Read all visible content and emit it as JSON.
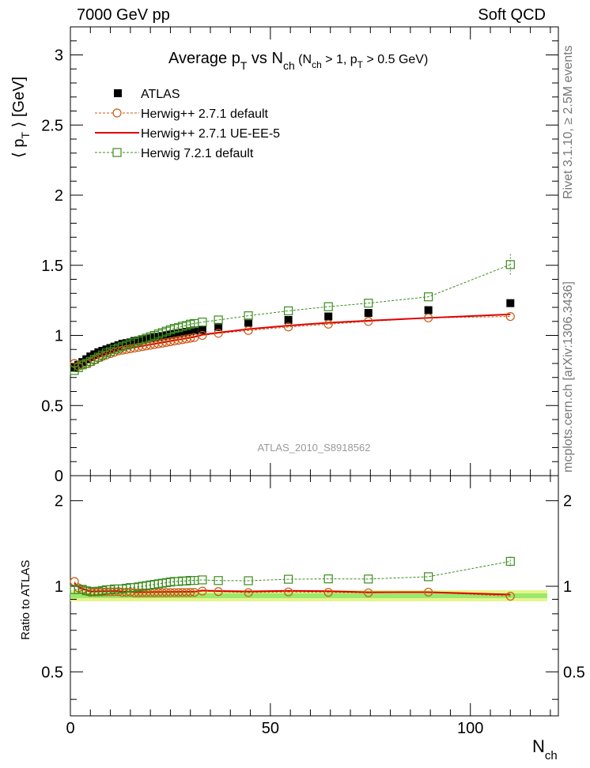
{
  "header": {
    "energy_label": "7000 GeV pp",
    "process_label": "Soft QCD",
    "side_rivet": "Rivet 3.1.10, ≥ 2.5M events",
    "side_mcplots": "mcplots.cern.ch [arXiv:1306.3436]"
  },
  "main_plot": {
    "title_main": "Average p",
    "title_sub_T": "T",
    "title_vs": " vs N",
    "title_sub_ch": "ch",
    "title_cond_1": " (N",
    "title_cond_2": " > 1, p",
    "title_cond_3": " > 0.5 GeV)",
    "ylabel_pre": "⟨ p",
    "ylabel_sub": "T",
    "ylabel_post": " ⟩ [GeV]",
    "analysis_id": "ATLAS_2010_S8918562",
    "yticks": [
      "0",
      "0.5",
      "1",
      "1.5",
      "2",
      "2.5",
      "3"
    ]
  },
  "ratio_plot": {
    "ylabel": "Ratio to ATLAS",
    "yticks": [
      "0.5",
      "1",
      "2"
    ],
    "xticks": [
      "0",
      "50",
      "100"
    ],
    "xlabel": "N",
    "xlabel_sub": "ch"
  },
  "legend": [
    {
      "label": "ATLAS",
      "color": "#000000",
      "marker": "filled-square"
    },
    {
      "label": "Herwig++ 2.7.1 default",
      "color": "#c85a14",
      "marker": "open-circle-dashed"
    },
    {
      "label": "Herwig++ 2.7.1 UE-EE-5",
      "color": "#e00000",
      "marker": "solid-line"
    },
    {
      "label": "Herwig 7.2.1 default",
      "color": "#3c8c1e",
      "marker": "open-square-dashed"
    }
  ],
  "chart_data": {
    "type": "scatter",
    "title": "Average pT vs Nch (Nch > 1, pT > 0.5 GeV)",
    "xlabel": "Nch",
    "ylabel": "⟨ pT ⟩ [GeV]",
    "xlim": [
      0,
      122
    ],
    "ylim": [
      0,
      3.2
    ],
    "ratio_ylim": [
      0.35,
      2.45
    ],
    "ratio_ylabel": "Ratio to ATLAS",
    "legend_position": "top-left",
    "series": [
      {
        "name": "ATLAS",
        "x": [
          1,
          2,
          3,
          4,
          5,
          6,
          7,
          8,
          9,
          10,
          11,
          12,
          13,
          14,
          15,
          16,
          17,
          18,
          19,
          20,
          21,
          22,
          23,
          24,
          25,
          26,
          27,
          28,
          29,
          30,
          31,
          33,
          37,
          44.5,
          54.5,
          64.5,
          74.5,
          89.5,
          110
        ],
        "y": [
          0.77,
          0.79,
          0.81,
          0.83,
          0.85,
          0.865,
          0.88,
          0.89,
          0.9,
          0.91,
          0.92,
          0.93,
          0.94,
          0.945,
          0.95,
          0.96,
          0.965,
          0.97,
          0.975,
          0.98,
          0.985,
          0.99,
          0.995,
          1.0,
          1.005,
          1.01,
          1.015,
          1.02,
          1.025,
          1.03,
          1.035,
          1.04,
          1.06,
          1.09,
          1.11,
          1.135,
          1.16,
          1.18,
          1.23
        ]
      },
      {
        "name": "Herwig++ 2.7.1 default",
        "x": [
          1,
          2,
          3,
          4,
          5,
          6,
          7,
          8,
          9,
          10,
          11,
          12,
          13,
          14,
          15,
          16,
          17,
          18,
          19,
          20,
          21,
          22,
          23,
          24,
          25,
          26,
          27,
          28,
          29,
          30,
          31,
          33,
          37,
          44.5,
          54.5,
          64.5,
          74.5,
          89.5,
          110
        ],
        "y": [
          0.8,
          0.78,
          0.79,
          0.8,
          0.81,
          0.825,
          0.84,
          0.85,
          0.86,
          0.87,
          0.88,
          0.89,
          0.895,
          0.9,
          0.905,
          0.91,
          0.915,
          0.92,
          0.925,
          0.93,
          0.935,
          0.94,
          0.945,
          0.95,
          0.955,
          0.96,
          0.965,
          0.97,
          0.975,
          0.98,
          0.985,
          1.0,
          1.015,
          1.035,
          1.06,
          1.08,
          1.1,
          1.125,
          1.135
        ]
      },
      {
        "name": "Herwig++ 2.7.1 UE-EE-5",
        "x": [
          1,
          2,
          3,
          4,
          5,
          6,
          7,
          8,
          9,
          10,
          11,
          12,
          13,
          14,
          15,
          16,
          17,
          18,
          19,
          20,
          21,
          22,
          23,
          24,
          25,
          26,
          27,
          28,
          29,
          30,
          31,
          33,
          37,
          44.5,
          54.5,
          64.5,
          74.5,
          89.5,
          110
        ],
        "y": [
          0.79,
          0.785,
          0.795,
          0.805,
          0.815,
          0.83,
          0.845,
          0.855,
          0.865,
          0.875,
          0.885,
          0.895,
          0.9,
          0.905,
          0.91,
          0.915,
          0.92,
          0.925,
          0.93,
          0.935,
          0.94,
          0.945,
          0.95,
          0.955,
          0.96,
          0.965,
          0.97,
          0.975,
          0.98,
          0.985,
          0.99,
          1.005,
          1.02,
          1.045,
          1.07,
          1.09,
          1.105,
          1.125,
          1.15
        ]
      },
      {
        "name": "Herwig 7.2.1 default",
        "x": [
          1,
          2,
          3,
          4,
          5,
          6,
          7,
          8,
          9,
          10,
          11,
          12,
          13,
          14,
          15,
          16,
          17,
          18,
          19,
          20,
          21,
          22,
          23,
          24,
          25,
          26,
          27,
          28,
          29,
          30,
          31,
          33,
          37,
          44.5,
          54.5,
          64.5,
          74.5,
          89.5,
          110
        ],
        "y": [
          0.75,
          0.77,
          0.79,
          0.8,
          0.815,
          0.83,
          0.845,
          0.86,
          0.875,
          0.885,
          0.9,
          0.91,
          0.92,
          0.93,
          0.94,
          0.95,
          0.96,
          0.97,
          0.98,
          0.99,
          1.0,
          1.01,
          1.02,
          1.03,
          1.04,
          1.05,
          1.055,
          1.065,
          1.07,
          1.08,
          1.085,
          1.095,
          1.11,
          1.14,
          1.175,
          1.205,
          1.23,
          1.275,
          1.505
        ]
      }
    ]
  }
}
